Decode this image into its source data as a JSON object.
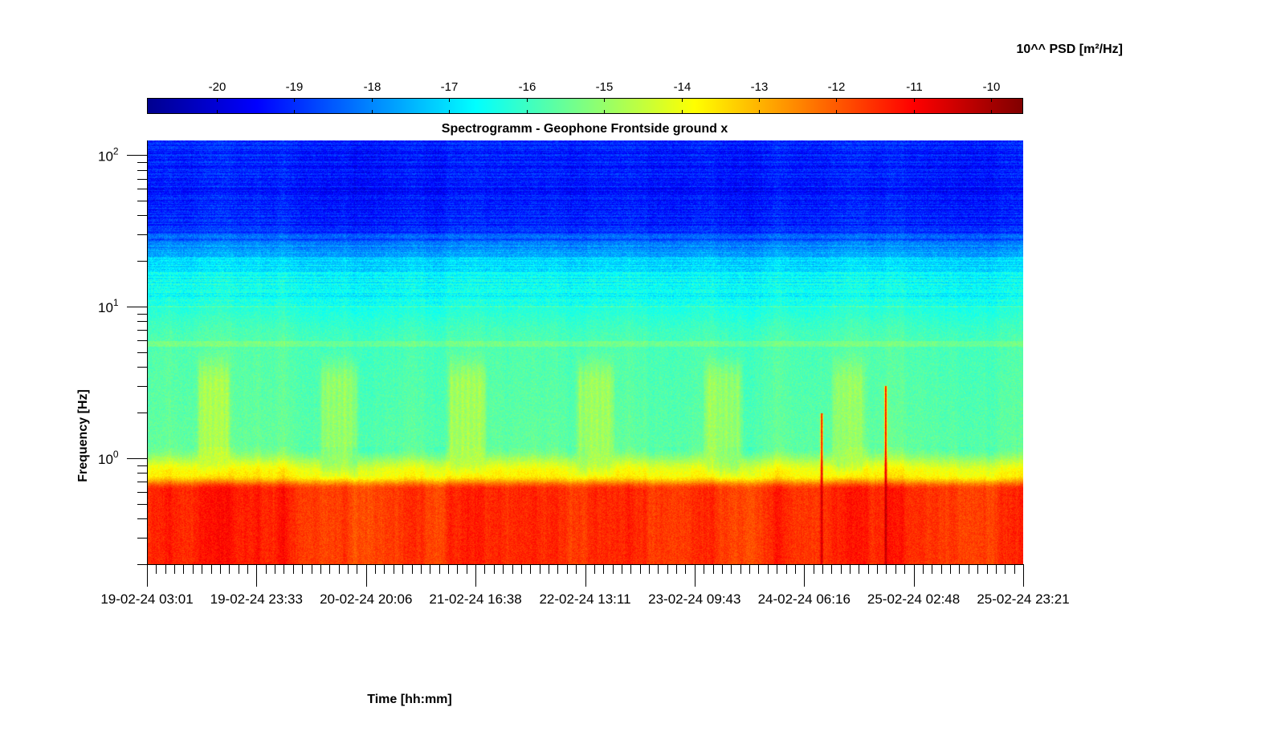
{
  "chart_data": {
    "type": "heatmap",
    "title": "Spectrogramm - Geophone Frontside ground x",
    "xlabel": "Time [hh:mm]",
    "ylabel": "Frequency [Hz]",
    "colorbar": {
      "label": "10^^ PSD [m²/Hz]",
      "ticks": [
        -20,
        -19,
        -18,
        -17,
        -16,
        -15,
        -14,
        -13,
        -12,
        -11,
        -10
      ],
      "range": [
        -20.9,
        -9.6
      ],
      "colormap": "jet",
      "position": "top"
    },
    "x_axis": {
      "type": "time",
      "range": [
        "19-02-24 03:01",
        "25-02-24 23:21"
      ],
      "tick_labels": [
        "19-02-24 03:01",
        "19-02-24 23:33",
        "20-02-24 20:06",
        "21-02-24 16:38",
        "22-02-24 13:11",
        "23-02-24 09:43",
        "24-02-24 06:16",
        "25-02-24 02:48",
        "25-02-24 23:21"
      ]
    },
    "y_axis": {
      "scale": "log",
      "range_hz": [
        0.2,
        125
      ],
      "tick_values": [
        1,
        10,
        100
      ],
      "tick_exponents": [
        "0",
        "1",
        "2"
      ]
    },
    "description_of_field": {
      "low_freq_band": {
        "freq_hz": [
          0.2,
          0.7
        ],
        "log_psd": -11.5
      },
      "transition_band": {
        "freq_hz": [
          0.7,
          1.2
        ],
        "log_psd": -13.8
      },
      "mid_band": {
        "freq_hz": [
          1.2,
          5.5
        ],
        "log_psd": -15.6
      },
      "resonance_line": {
        "freq_hz": 5.7,
        "log_psd": -15.4
      },
      "upper_mid_band": {
        "freq_hz": [
          6,
          15
        ],
        "log_psd": -16.6
      },
      "high_band": {
        "freq_hz": [
          40,
          125
        ],
        "log_psd": -19.2
      },
      "daily_activity_bursts": [
        {
          "start": "19-02-24 12:00",
          "end": "19-02-24 19:00",
          "log_psd": -14.8
        },
        {
          "start": "20-02-24 11:00",
          "end": "20-02-24 19:00",
          "log_psd": -14.8
        },
        {
          "start": "21-02-24 11:00",
          "end": "21-02-24 19:00",
          "log_psd": -14.8
        },
        {
          "start": "22-02-24 11:00",
          "end": "22-02-24 19:00",
          "log_psd": -14.8
        },
        {
          "start": "23-02-24 11:00",
          "end": "23-02-24 19:00",
          "log_psd": -14.8
        },
        {
          "start": "24-02-24 11:00",
          "end": "24-02-24 18:00",
          "log_psd": -15.0
        }
      ],
      "transient_spikes": [
        {
          "time": "24-02-24 09:30",
          "max_freq_hz": 2.0,
          "log_psd": -10.3
        },
        {
          "time": "24-02-24 21:30",
          "max_freq_hz": 3.0,
          "log_psd": -10.3
        }
      ]
    }
  }
}
